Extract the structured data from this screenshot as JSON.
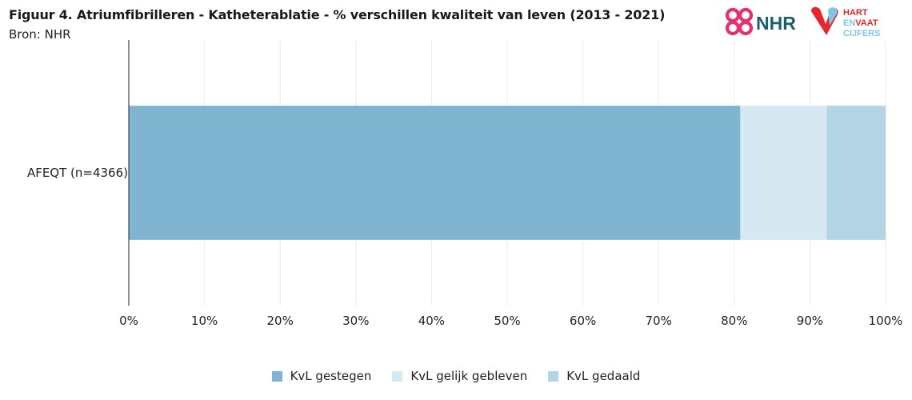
{
  "header": {
    "title": "Figuur 4. Atriumfibrilleren - Katheterablatie - % verschillen kwaliteit van leven (2013 - 2021)",
    "source": "Bron: NHR"
  },
  "logos": {
    "nhr": {
      "text": "NHR",
      "color_pink": "#e6306f",
      "color_teal": "#1c5f6b"
    },
    "hart_en_vaat": {
      "line1": "HART",
      "line2_a": "EN",
      "line2_b": "VAAT",
      "line3": "CIJFERS",
      "color_red": "#e2282c",
      "color_blue": "#7cc7e8"
    }
  },
  "chart_data": {
    "type": "bar",
    "orientation": "horizontal",
    "stacked": true,
    "categories": [
      "AFEQT (n=4366)"
    ],
    "series": [
      {
        "name": "KvL gestegen",
        "values": [
          80.8
        ],
        "color": "#7fb5d1"
      },
      {
        "name": "KvL gelijk gebleven",
        "values": [
          11.4
        ],
        "color": "#d6e8f1"
      },
      {
        "name": "KvL gedaald",
        "values": [
          7.8
        ],
        "color": "#b2d4e4"
      }
    ],
    "xlim": [
      0,
      100
    ],
    "x_ticks": [
      "0%",
      "10%",
      "20%",
      "30%",
      "40%",
      "50%",
      "60%",
      "70%",
      "80%",
      "90%",
      "100%"
    ],
    "grid": true,
    "legend_position": "bottom"
  }
}
